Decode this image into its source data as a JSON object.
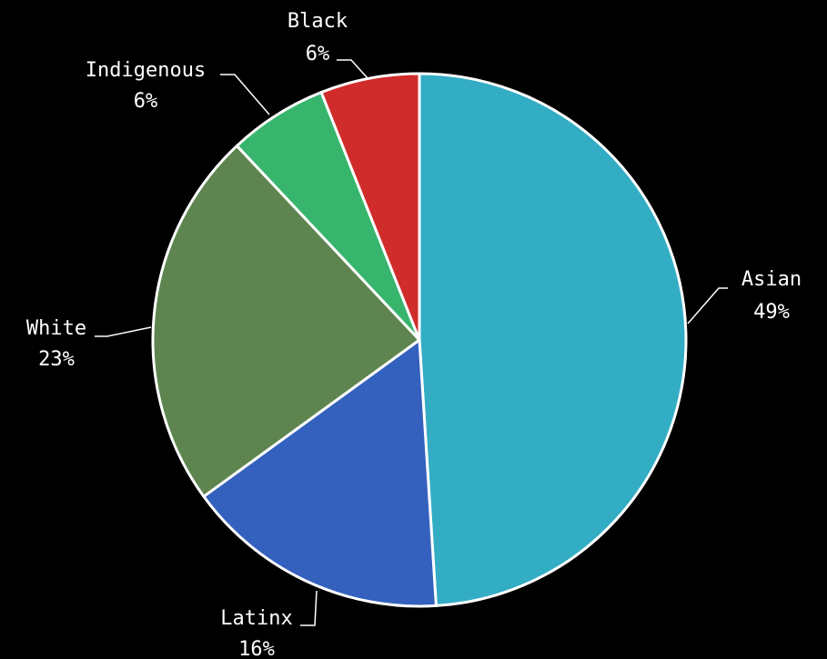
{
  "chart_data": {
    "type": "pie",
    "title": "",
    "legend": "none",
    "categories": [
      "Asian",
      "Latinx",
      "White",
      "Indigenous",
      "Black"
    ],
    "values": [
      49,
      16,
      23,
      6,
      6
    ],
    "labels": [
      "49%",
      "16%",
      "23%",
      "6%",
      "6%"
    ],
    "colors": [
      "#33adc4",
      "#3461bd",
      "#5e8550",
      "#37b56d",
      "#d02c2c"
    ],
    "slice_border_color": "#ffffff",
    "start": "12 o'clock",
    "direction": "clockwise"
  },
  "background_color": "#000000"
}
